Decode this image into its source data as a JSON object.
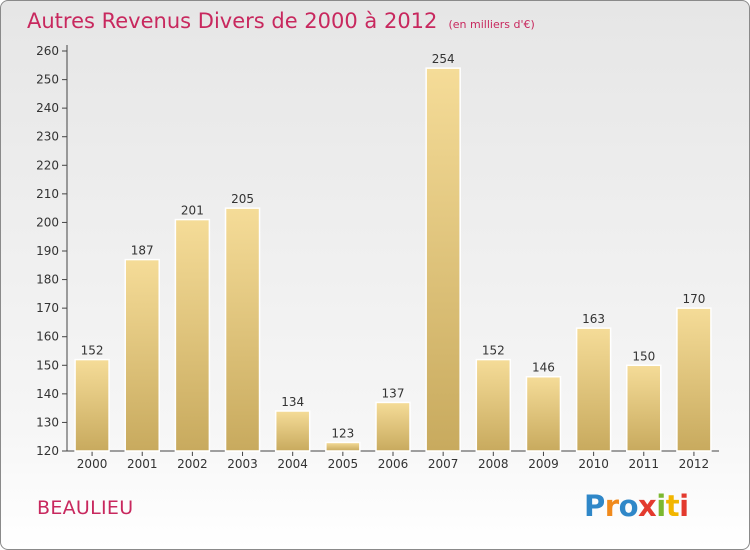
{
  "header": {
    "title": "Autres Revenus Divers de 2000 à 2012",
    "subtitle": "(en milliers d'€)"
  },
  "footer": {
    "commune": "BEAULIEU",
    "logo_text": "Proxiti"
  },
  "colors": {
    "title": "#c8285e",
    "bar_top": "#f5dc98",
    "bar_bottom": "#c8aa5e",
    "background": "#eeeeee"
  },
  "chart_data": {
    "type": "bar",
    "title": "Autres Revenus Divers de 2000 à 2012",
    "xlabel": "",
    "ylabel": "",
    "categories": [
      "2000",
      "2001",
      "2002",
      "2003",
      "2004",
      "2005",
      "2006",
      "2007",
      "2008",
      "2009",
      "2010",
      "2011",
      "2012"
    ],
    "values": [
      152,
      187,
      201,
      205,
      134,
      123,
      137,
      254,
      152,
      146,
      163,
      150,
      170
    ],
    "ylim": [
      120,
      260
    ],
    "yticks": [
      120,
      130,
      140,
      150,
      160,
      170,
      180,
      190,
      200,
      210,
      220,
      230,
      240,
      250,
      260
    ],
    "grid": false,
    "data_labels": true
  }
}
